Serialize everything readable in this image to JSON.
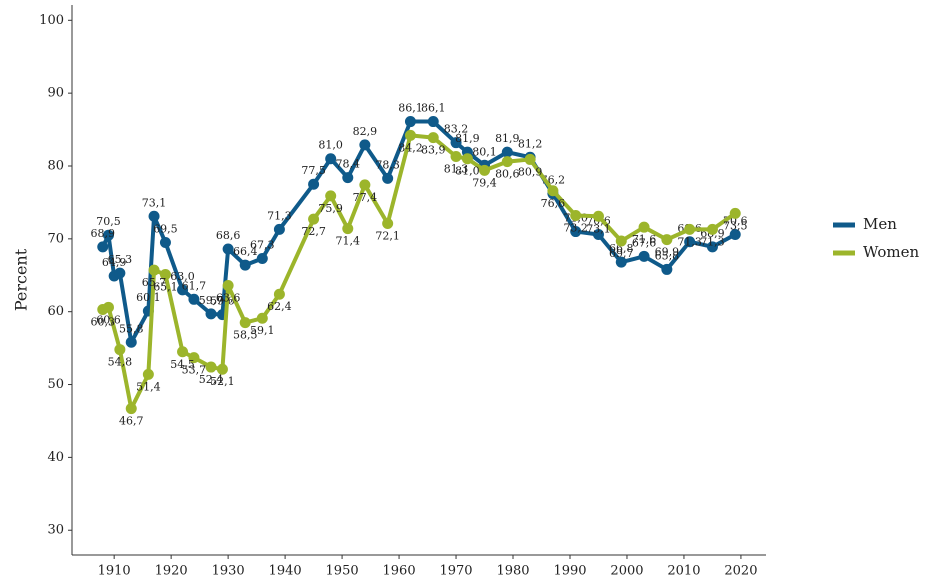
{
  "chart_data": {
    "type": "line",
    "y_label": "Percent",
    "xlim": [
      1902.6,
      2024.4
    ],
    "ylim": [
      26.6,
      102.1
    ],
    "xticks": [
      1910,
      1920,
      1930,
      1940,
      1950,
      1960,
      1970,
      1980,
      1990,
      2000,
      2010,
      2020
    ],
    "yticks": [
      30,
      40,
      50,
      60,
      70,
      80,
      90,
      100
    ],
    "grid": false,
    "legend": "right",
    "series": [
      {
        "name": "Men",
        "color": "#0f5a8a",
        "x": [
          1908,
          1909,
          1910,
          1911,
          1913,
          1916,
          1917,
          1919,
          1922,
          1924,
          1927,
          1929,
          1930,
          1933,
          1936,
          1939,
          1945,
          1948,
          1951,
          1954,
          1958,
          1962,
          1966,
          1970,
          1972,
          1975,
          1979,
          1983,
          1987,
          1991,
          1995,
          1999,
          2003,
          2007,
          2011,
          2015,
          2019
        ],
        "values": [
          68.9,
          70.5,
          64.9,
          65.3,
          55.8,
          60.1,
          73.1,
          69.5,
          63.0,
          61.7,
          59.7,
          59.6,
          68.6,
          66.4,
          67.3,
          71.3,
          77.5,
          81.0,
          78.4,
          82.9,
          78.3,
          86.1,
          86.1,
          83.2,
          81.9,
          80.1,
          81.9,
          81.2,
          76.2,
          71.0,
          70.6,
          66.8,
          67.6,
          65.8,
          69.6,
          68.9,
          70.6
        ],
        "value_labels": [
          "68,9",
          "70,5",
          "64,9",
          "65,3",
          "55,8",
          "60,1",
          "73,1",
          "69,5",
          "63,0",
          "61,7",
          "59,7",
          "59,6",
          "68,6",
          "66,4",
          "67,3",
          "71,3",
          "77,5",
          "81,0",
          "78,4",
          "82,9",
          "78,3",
          "86,1",
          "86,1",
          "83,2",
          "81,9",
          "80,1",
          "81,9",
          "81,2",
          "76,2",
          "71,0",
          "70,6",
          "66,8",
          "67,6",
          "65,8",
          "69,6",
          "68,9",
          "70,6"
        ]
      },
      {
        "name": "Women",
        "color": "#9cb52b",
        "x": [
          1908,
          1909,
          1911,
          1913,
          1916,
          1917,
          1919,
          1922,
          1924,
          1927,
          1929,
          1930,
          1933,
          1936,
          1939,
          1945,
          1948,
          1951,
          1954,
          1958,
          1962,
          1966,
          1970,
          1972,
          1975,
          1979,
          1983,
          1987,
          1991,
          1995,
          1999,
          2003,
          2007,
          2011,
          2015,
          2019
        ],
        "values": [
          60.3,
          60.6,
          54.8,
          46.7,
          51.4,
          65.7,
          65.1,
          54.5,
          53.7,
          52.4,
          52.1,
          63.6,
          58.5,
          59.1,
          62.4,
          72.7,
          75.9,
          71.4,
          77.4,
          72.1,
          84.2,
          83.9,
          81.3,
          81.0,
          79.4,
          80.6,
          80.9,
          76.6,
          73.2,
          73.1,
          69.7,
          71.6,
          69.9,
          71.3,
          71.3,
          73.5
        ],
        "value_labels": [
          "60,3",
          "60,6",
          "54,8",
          "46,7",
          "51,4",
          "65,7",
          "65,1",
          "54,5",
          "53,7",
          "52,4",
          "52,1",
          "63,6",
          "58,5",
          "59,1",
          "62,4",
          "72,7",
          "75,9",
          "71,4",
          "77,4",
          "72,1",
          "84,2",
          "83,9",
          "81,3",
          "81,0",
          "79,4",
          "80,6",
          "80,9",
          "76,6",
          "73,2",
          "73,1",
          "69,7",
          "71,6",
          "69,9",
          "71,3",
          "71,3",
          "73,5"
        ]
      }
    ]
  }
}
